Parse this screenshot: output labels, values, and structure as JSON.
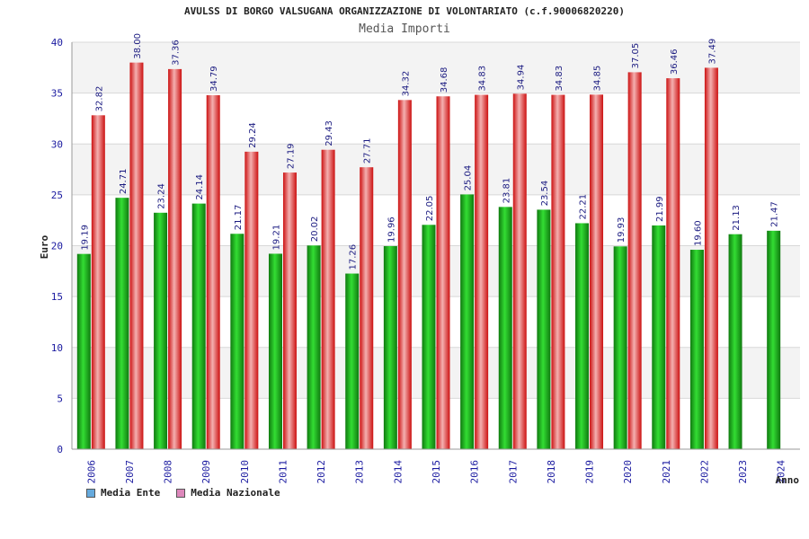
{
  "chart_data": {
    "type": "bar",
    "title": "AVULSS DI BORGO VALSUGANA ORGANIZZAZIONE DI VOLONTARIATO (c.f.90006820220)",
    "subtitle": "Media Importi",
    "xlabel": "Anno",
    "ylabel": "Euro",
    "ylim": [
      0,
      40
    ],
    "yticks": [
      0,
      5,
      10,
      15,
      20,
      25,
      30,
      35,
      40
    ],
    "categories": [
      "2006",
      "2007",
      "2008",
      "2009",
      "2010",
      "2011",
      "2012",
      "2013",
      "2014",
      "2015",
      "2016",
      "2017",
      "2018",
      "2019",
      "2020",
      "2021",
      "2022",
      "2023",
      "2024"
    ],
    "series": [
      {
        "name": "Media Ente",
        "color": "#22aa22",
        "legend_color": "#66aadd",
        "values": [
          19.19,
          24.71,
          23.24,
          24.14,
          21.17,
          19.21,
          20.02,
          17.26,
          19.96,
          22.05,
          25.04,
          23.81,
          23.54,
          22.21,
          19.93,
          21.99,
          19.6,
          21.13,
          21.47
        ],
        "labels": [
          "19.19",
          "24.71",
          "23.24",
          "24.14",
          "21.17",
          "19.21",
          "20.02",
          "17.26",
          "19.96",
          "22.05",
          "25.04",
          "23.81",
          "23.54",
          "22.21",
          "19.93",
          "21.99",
          "19.60",
          "21.13",
          "21.47"
        ]
      },
      {
        "name": "Media Nazionale",
        "color": "#ee2222",
        "legend_color": "#dd88bb",
        "values": [
          32.82,
          38.0,
          37.36,
          34.79,
          29.24,
          27.19,
          29.43,
          27.71,
          34.32,
          34.68,
          34.83,
          34.94,
          34.83,
          34.85,
          37.05,
          36.46,
          37.49,
          null,
          null
        ],
        "labels": [
          "32.82",
          "38.00",
          "37.36",
          "34.79",
          "29.24",
          "27.19",
          "29.43",
          "27.71",
          "34.32",
          "34.68",
          "34.83",
          "34.94",
          "34.83",
          "34.85",
          "37.05",
          "36.46",
          "37.49",
          "",
          ""
        ]
      }
    ],
    "legend_position": "bottom-left",
    "grid": true
  }
}
